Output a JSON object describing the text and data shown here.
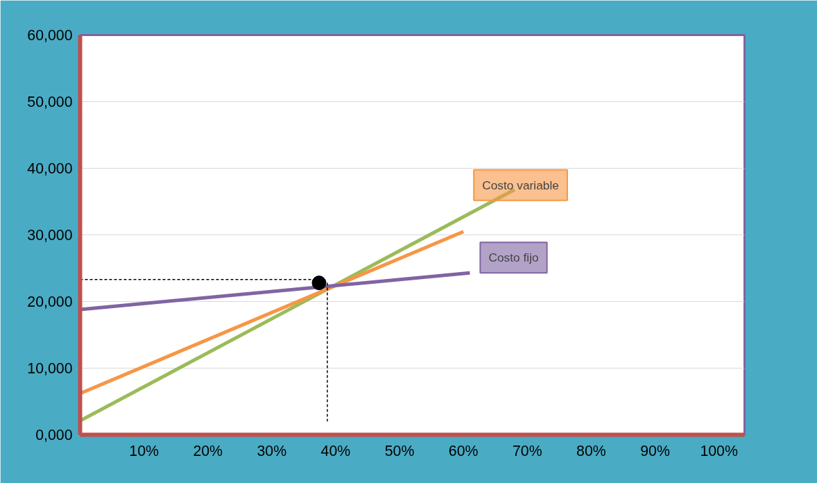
{
  "chart_data": {
    "type": "line",
    "xlim": [
      0,
      104
    ],
    "ylim": [
      0,
      60000
    ],
    "xticks": [
      {
        "value": 10,
        "label": "10%"
      },
      {
        "value": 20,
        "label": "20%"
      },
      {
        "value": 30,
        "label": "30%"
      },
      {
        "value": 40,
        "label": "40%"
      },
      {
        "value": 50,
        "label": "50%"
      },
      {
        "value": 60,
        "label": "60%"
      },
      {
        "value": 70,
        "label": "70%"
      },
      {
        "value": 80,
        "label": "80%"
      },
      {
        "value": 90,
        "label": "90%"
      },
      {
        "value": 100,
        "label": "100%"
      }
    ],
    "yticks": [
      {
        "value": 0,
        "label": "0,000"
      },
      {
        "value": 10000,
        "label": "10,000"
      },
      {
        "value": 20000,
        "label": "20,000"
      },
      {
        "value": 30000,
        "label": "30,000"
      },
      {
        "value": 40000,
        "label": "40,000"
      },
      {
        "value": 50000,
        "label": "50,000"
      },
      {
        "value": 60000,
        "label": "60,000"
      }
    ],
    "grid": "y",
    "line_style": "solid",
    "marker": "none",
    "series": [
      {
        "color": "#9bbb59",
        "x": [
          0,
          68
        ],
        "values": [
          2100,
          36800
        ]
      },
      {
        "name": "Costo variable",
        "color": "#f79646",
        "x": [
          0,
          60
        ],
        "values": [
          6200,
          30500
        ]
      },
      {
        "name": "Costo fijo",
        "color": "#8064a2",
        "x": [
          0,
          61
        ],
        "values": [
          18800,
          24300
        ]
      },
      {
        "color": "#000000",
        "line_style": "dashed",
        "x": [
          0,
          37.4
        ],
        "values": [
          23300,
          23300
        ]
      },
      {
        "color": "#000000",
        "line_style": "dashed",
        "x": [
          38.7,
          38.7
        ],
        "values": [
          22800,
          2000
        ]
      },
      {
        "type": "scatter",
        "marker": "circle",
        "color": "#000000",
        "x": [
          37.4
        ],
        "values": [
          22800
        ]
      }
    ]
  }
}
